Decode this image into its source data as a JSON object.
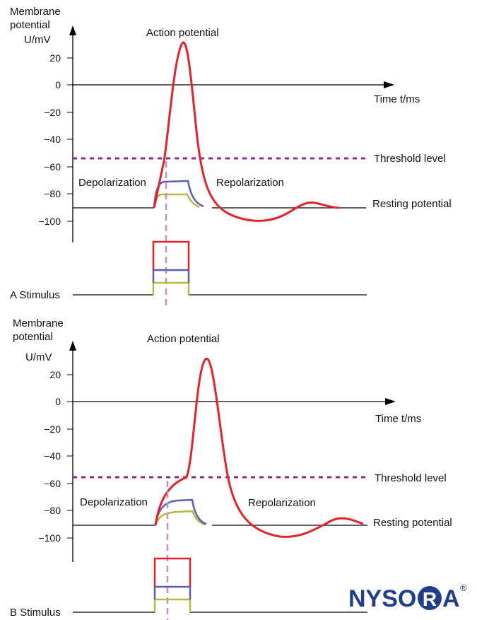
{
  "panels": [
    {
      "ylabel_line1": "Membrane",
      "ylabel_line2": "potential",
      "ylabel_unit": "U/mV",
      "xlabel": "Time  t/ms",
      "title": "Action potential",
      "threshold_label": "Threshold level",
      "resting_label": "Resting potential",
      "depolarization_label": "Depolarization",
      "repolarization_label": "Repolarization",
      "stimulus_label": "A  Stimulus",
      "ticks": [
        "20",
        "0",
        "−20",
        "−40",
        "−60",
        "−80",
        "−100"
      ]
    },
    {
      "ylabel_line1": "Membrane",
      "ylabel_line2": "potential",
      "ylabel_unit": "U/mV",
      "xlabel": "Time  t/ms",
      "title": "Action potential",
      "threshold_label": "Threshold level",
      "resting_label": "Resting potential",
      "depolarization_label": "Depolarization",
      "repolarization_label": "Repolarization",
      "stimulus_label": "B  Stimulus",
      "ticks": [
        "20",
        "0",
        "−20",
        "−40",
        "−60",
        "−80",
        "−100"
      ]
    }
  ],
  "logo": {
    "text_left": "NYSO",
    "text_circle": "R",
    "text_right": "A",
    "registered": "®"
  },
  "colors": {
    "action_potential": "#e8202a",
    "subthreshold_strong": "#5b5fb0",
    "subthreshold_weak": "#b8b840",
    "threshold": "#8e2b8e",
    "stimulus_marker": "#c58fc6",
    "logo": "#1f3f8c"
  }
}
